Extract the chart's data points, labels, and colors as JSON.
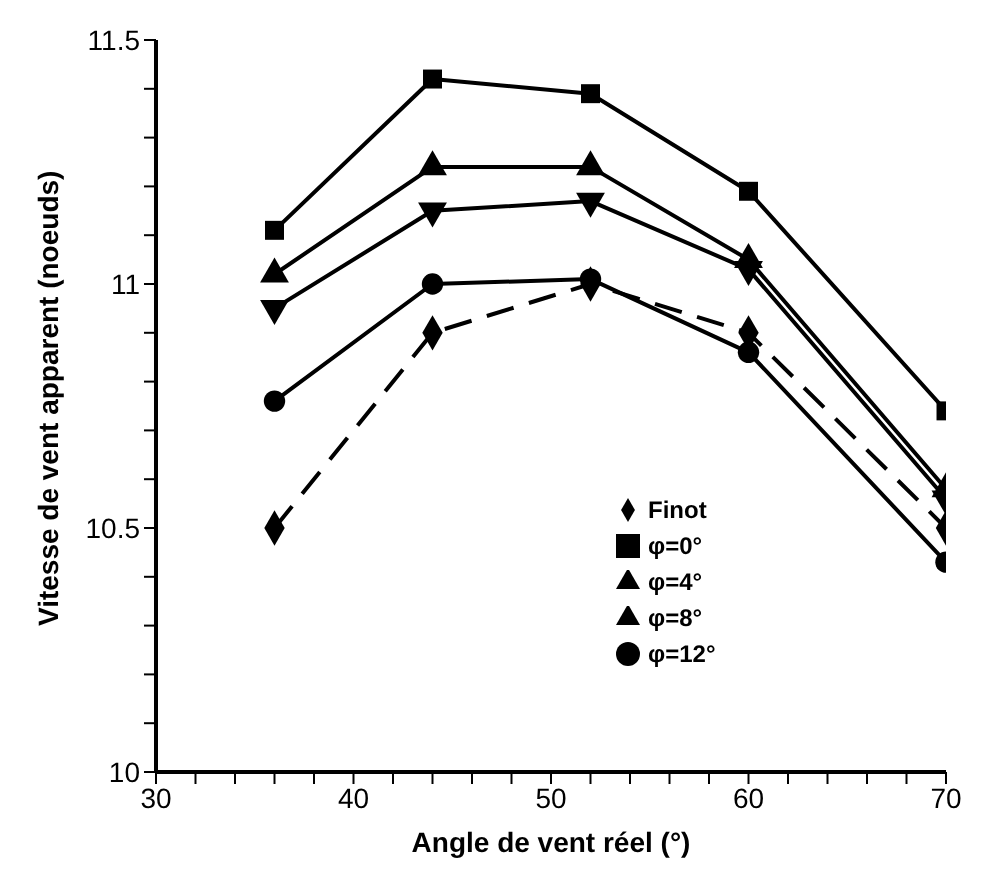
{
  "chart_data": {
    "type": "line",
    "xlabel": "Angle de vent réel  (°)",
    "ylabel": "Vitesse de vent apparent (noeuds)",
    "x": [
      36,
      44,
      52,
      60,
      70
    ],
    "xlim": [
      30,
      70
    ],
    "xticks": [
      30,
      {
        "value": 32,
        "label": null
      },
      {
        "value": 34,
        "label": null
      },
      {
        "value": 36,
        "label": null
      },
      {
        "value": 38,
        "label": null
      },
      40,
      {
        "value": 42,
        "label": null
      },
      {
        "value": 44,
        "label": null
      },
      {
        "value": 46,
        "label": null
      },
      {
        "value": 48,
        "label": null
      },
      50,
      {
        "value": 52,
        "label": null
      },
      {
        "value": 54,
        "label": null
      },
      {
        "value": 56,
        "label": null
      },
      {
        "value": 58,
        "label": null
      },
      60,
      {
        "value": 62,
        "label": null
      },
      {
        "value": 64,
        "label": null
      },
      {
        "value": 66,
        "label": null
      },
      {
        "value": 68,
        "label": null
      },
      70
    ],
    "ylim": [
      10,
      11.5
    ],
    "yticks": [
      10,
      {
        "value": 10.1,
        "label": null
      },
      {
        "value": 10.2,
        "label": null
      },
      {
        "value": 10.3,
        "label": null
      },
      {
        "value": 10.4,
        "label": null
      },
      10.5,
      {
        "value": 10.6,
        "label": null
      },
      {
        "value": 10.7,
        "label": null
      },
      {
        "value": 10.8,
        "label": null
      },
      {
        "value": 10.9,
        "label": null
      },
      11,
      {
        "value": 11.1,
        "label": null
      },
      {
        "value": 11.2,
        "label": null
      },
      {
        "value": 11.3,
        "label": null
      },
      {
        "value": 11.4,
        "label": null
      },
      11.5
    ],
    "grid": false,
    "legend": "bottom right",
    "series": [
      {
        "name": "Finot",
        "color": "#000000",
        "marker": "diamond",
        "line_style": "dashed",
        "values": [
          10.5,
          10.9,
          11.0,
          10.9,
          10.5
        ]
      },
      {
        "name": "φ=0°",
        "color": "#000000",
        "marker": "square",
        "line_style": "solid",
        "values": [
          11.11,
          11.42,
          11.39,
          11.19,
          10.74
        ]
      },
      {
        "name": "φ=4°",
        "color": "#000000",
        "marker": "triangle",
        "line_style": "solid",
        "values": [
          11.02,
          11.24,
          11.24,
          11.05,
          10.58
        ]
      },
      {
        "name": "φ=8°",
        "color": "#000000",
        "marker": "triangle-down",
        "line_style": "solid",
        "values": [
          10.95,
          11.15,
          11.17,
          11.03,
          10.56
        ]
      },
      {
        "name": "φ=12°",
        "color": "#000000",
        "marker": "circle",
        "line_style": "solid",
        "values": [
          10.76,
          11.0,
          11.01,
          10.86,
          10.43
        ]
      }
    ]
  }
}
